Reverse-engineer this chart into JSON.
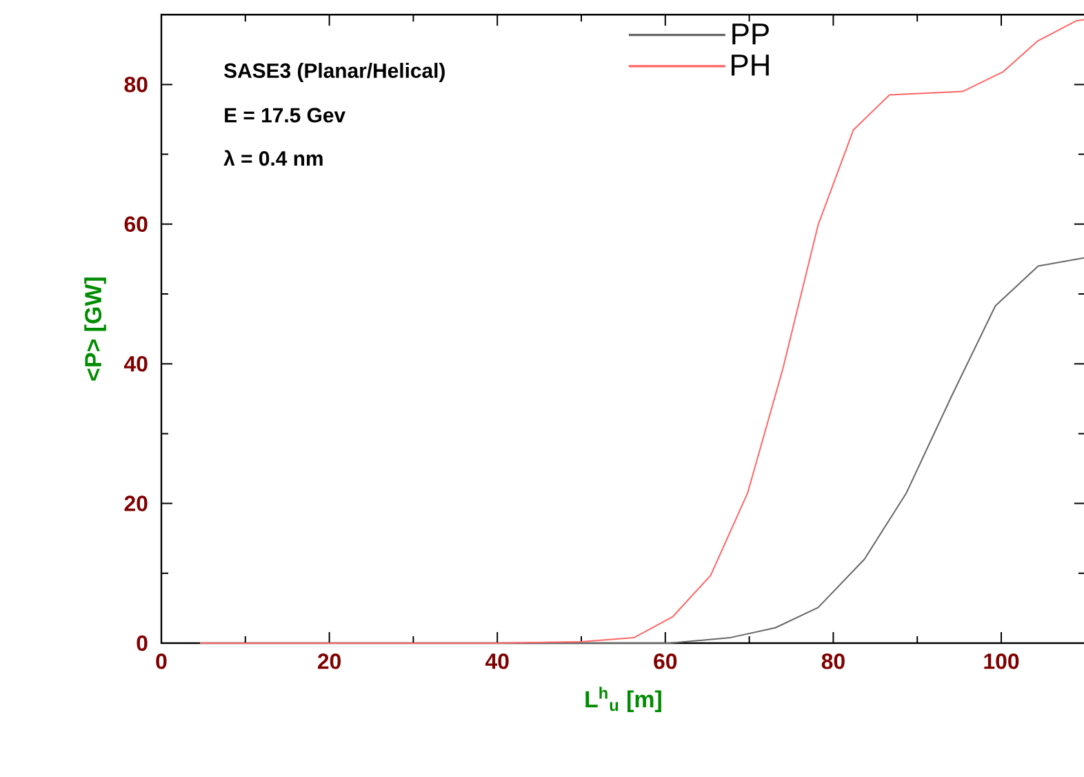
{
  "chart_data": {
    "type": "line",
    "xlabel": "L$^{h}$$_{u}$  [m]",
    "ylabel": "<P>  [GW]",
    "annotations": [
      "SASE3 (Planar/Helical)",
      "E = 17.5 Gev",
      "λ = 0.4 nm"
    ],
    "series": [
      {
        "name": "PP",
        "color": "#666666",
        "x": [
          4.6,
          50,
          60.5,
          67.8,
          73.1,
          78.2,
          83.7,
          88.7,
          94.1,
          99.3,
          104.4,
          110
        ],
        "values": [
          0,
          0,
          0,
          0.8,
          2.2,
          5.1,
          12,
          21.5,
          35.4,
          48.3,
          54,
          55.2
        ]
      },
      {
        "name": "PH",
        "color": "#ff6666",
        "x": [
          4.6,
          40,
          50,
          56.3,
          60.9,
          65.4,
          69.8,
          74,
          78.2,
          82.4,
          86.7,
          95.4,
          100.2,
          104.3,
          108.9,
          110
        ],
        "values": [
          0,
          0,
          0.2,
          0.8,
          3.8,
          9.7,
          21.5,
          39.3,
          59.9,
          73.5,
          78.5,
          79,
          81.8,
          86.2,
          89.1,
          89.3
        ]
      }
    ],
    "xlim": [
      0,
      110
    ],
    "ylim": [
      0,
      90
    ],
    "xticks": [
      0,
      20,
      40,
      60,
      80,
      100
    ],
    "yticks": [
      0,
      20,
      40,
      60,
      80
    ],
    "legend": "top"
  }
}
